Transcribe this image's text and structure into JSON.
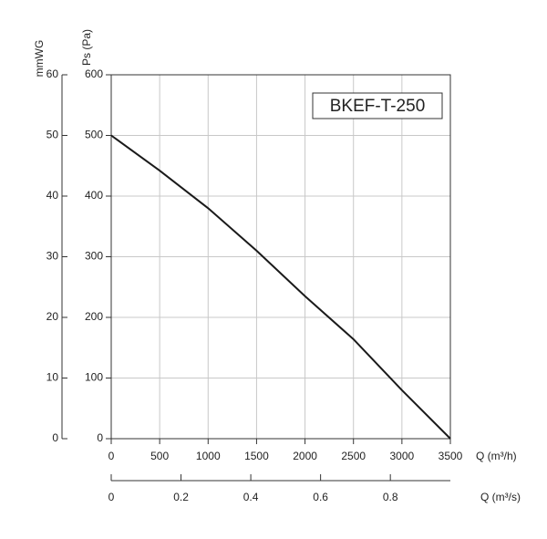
{
  "chart_data": {
    "type": "line",
    "ylabel": "Ps (Pa)",
    "y2label": "mmWG",
    "xlabel": "Q (m³/h)",
    "x2label": "Q (m³/s)",
    "x": [
      0,
      500,
      1000,
      1500,
      2000,
      2500,
      3000,
      3500
    ],
    "series": [
      {
        "name": "BKEF-T-250",
        "color": "#1a1a1a",
        "values": [
          500,
          442,
          380,
          310,
          235,
          164,
          80,
          0
        ]
      }
    ],
    "xlim": [
      0,
      3500
    ],
    "xticks": [
      0,
      500,
      1000,
      1500,
      2000,
      2500,
      3000,
      3500
    ],
    "ylim": [
      0,
      600
    ],
    "yticks": [
      0,
      100,
      200,
      300,
      400,
      500,
      600
    ],
    "y2lim": [
      0,
      60
    ],
    "y2ticks": [
      0,
      10,
      20,
      30,
      40,
      50,
      60
    ],
    "x2lim": [
      0,
      0.972
    ],
    "x2ticks": [
      0,
      0.2,
      0.4,
      0.6,
      0.8
    ],
    "grid": true
  }
}
